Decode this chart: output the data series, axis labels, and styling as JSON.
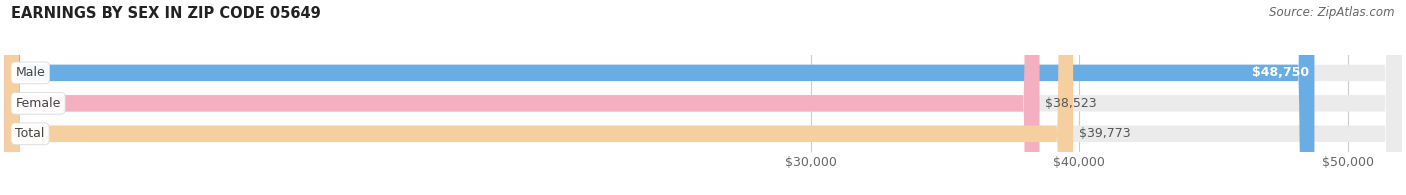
{
  "title": "EARNINGS BY SEX IN ZIP CODE 05649",
  "source": "Source: ZipAtlas.com",
  "categories": [
    "Male",
    "Female",
    "Total"
  ],
  "values": [
    48750,
    38523,
    39773
  ],
  "bar_colors": [
    "#6aade4",
    "#f4afc0",
    "#f5cfa0"
  ],
  "value_label_colors": [
    "#ffffff",
    "#555555",
    "#555555"
  ],
  "x_min": 0,
  "x_max": 52000,
  "x_ticks": [
    30000,
    40000,
    50000
  ],
  "x_tick_labels": [
    "$30,000",
    "$40,000",
    "$50,000"
  ],
  "title_fontsize": 10.5,
  "source_fontsize": 8.5,
  "cat_label_fontsize": 9,
  "value_fontsize": 9,
  "tick_fontsize": 9,
  "bar_height": 0.54,
  "background_color": "#ffffff",
  "track_color": "#ebebeb",
  "grid_color": "#cccccc",
  "cat_label_text_color": "#444444"
}
